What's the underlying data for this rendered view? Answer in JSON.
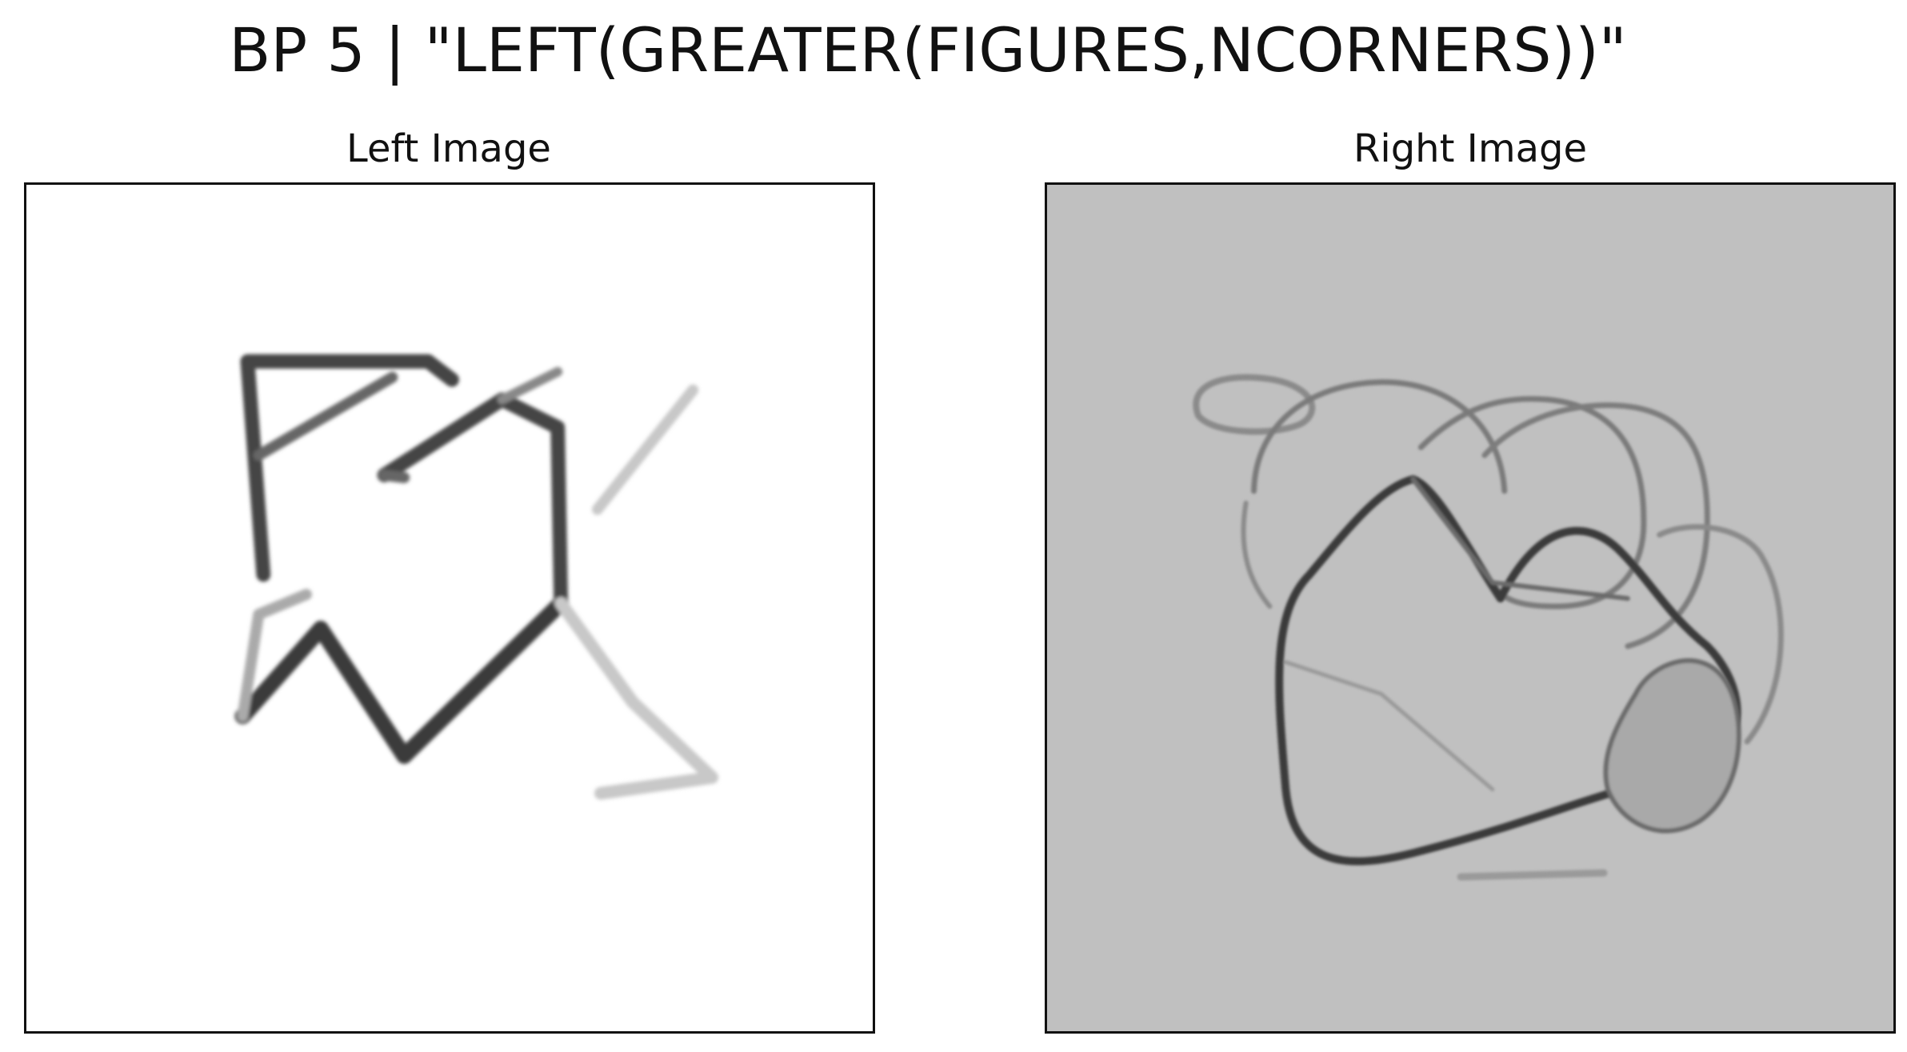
{
  "figure": {
    "title": "BP 5 | \"LEFT(GREATER(FIGURES,NCORNERS))\""
  },
  "panels": [
    {
      "title": "Left Image",
      "background": "#ffffff",
      "stroke_color": "#3a3a3a"
    },
    {
      "title": "Right Image",
      "background": "#c0c0c0",
      "stroke_color": "#5a5a5a"
    }
  ]
}
